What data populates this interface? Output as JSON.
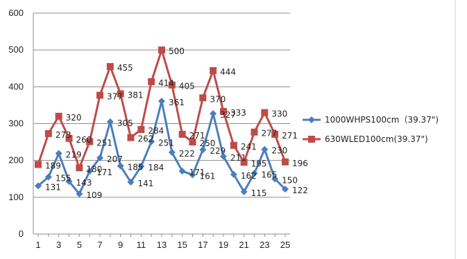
{
  "chart_data": {
    "type": "line",
    "x": [
      1,
      2,
      3,
      4,
      5,
      6,
      7,
      8,
      9,
      10,
      11,
      12,
      13,
      14,
      15,
      16,
      17,
      18,
      19,
      20,
      21,
      22,
      23,
      24,
      25
    ],
    "xticks": [
      1,
      3,
      5,
      7,
      9,
      11,
      13,
      15,
      17,
      19,
      21,
      23,
      25
    ],
    "ylim": [
      0,
      600
    ],
    "yticks": [
      0,
      100,
      200,
      300,
      400,
      500,
      600
    ],
    "grid": true,
    "legend_position": "right",
    "series": [
      {
        "name": "1000WHPS100cm（39.37\")",
        "color": "#4a7ebb",
        "marker": "diamond",
        "values": [
          131,
          155,
          219,
          143,
          109,
          171,
          207,
          305,
          185,
          141,
          184,
          251,
          361,
          222,
          171,
          161,
          229,
          327,
          211,
          162,
          115,
          165,
          230,
          150,
          122
        ]
      },
      {
        "name": "630WLED100cm(39.37\")",
        "color": "#be4b48",
        "marker": "square",
        "values": [
          189,
          273,
          320,
          260,
          180,
          251,
          377,
          455,
          381,
          262,
          284,
          414,
          500,
          405,
          271,
          250,
          370,
          444,
          333,
          241,
          195,
          277,
          330,
          271,
          196
        ]
      }
    ]
  }
}
